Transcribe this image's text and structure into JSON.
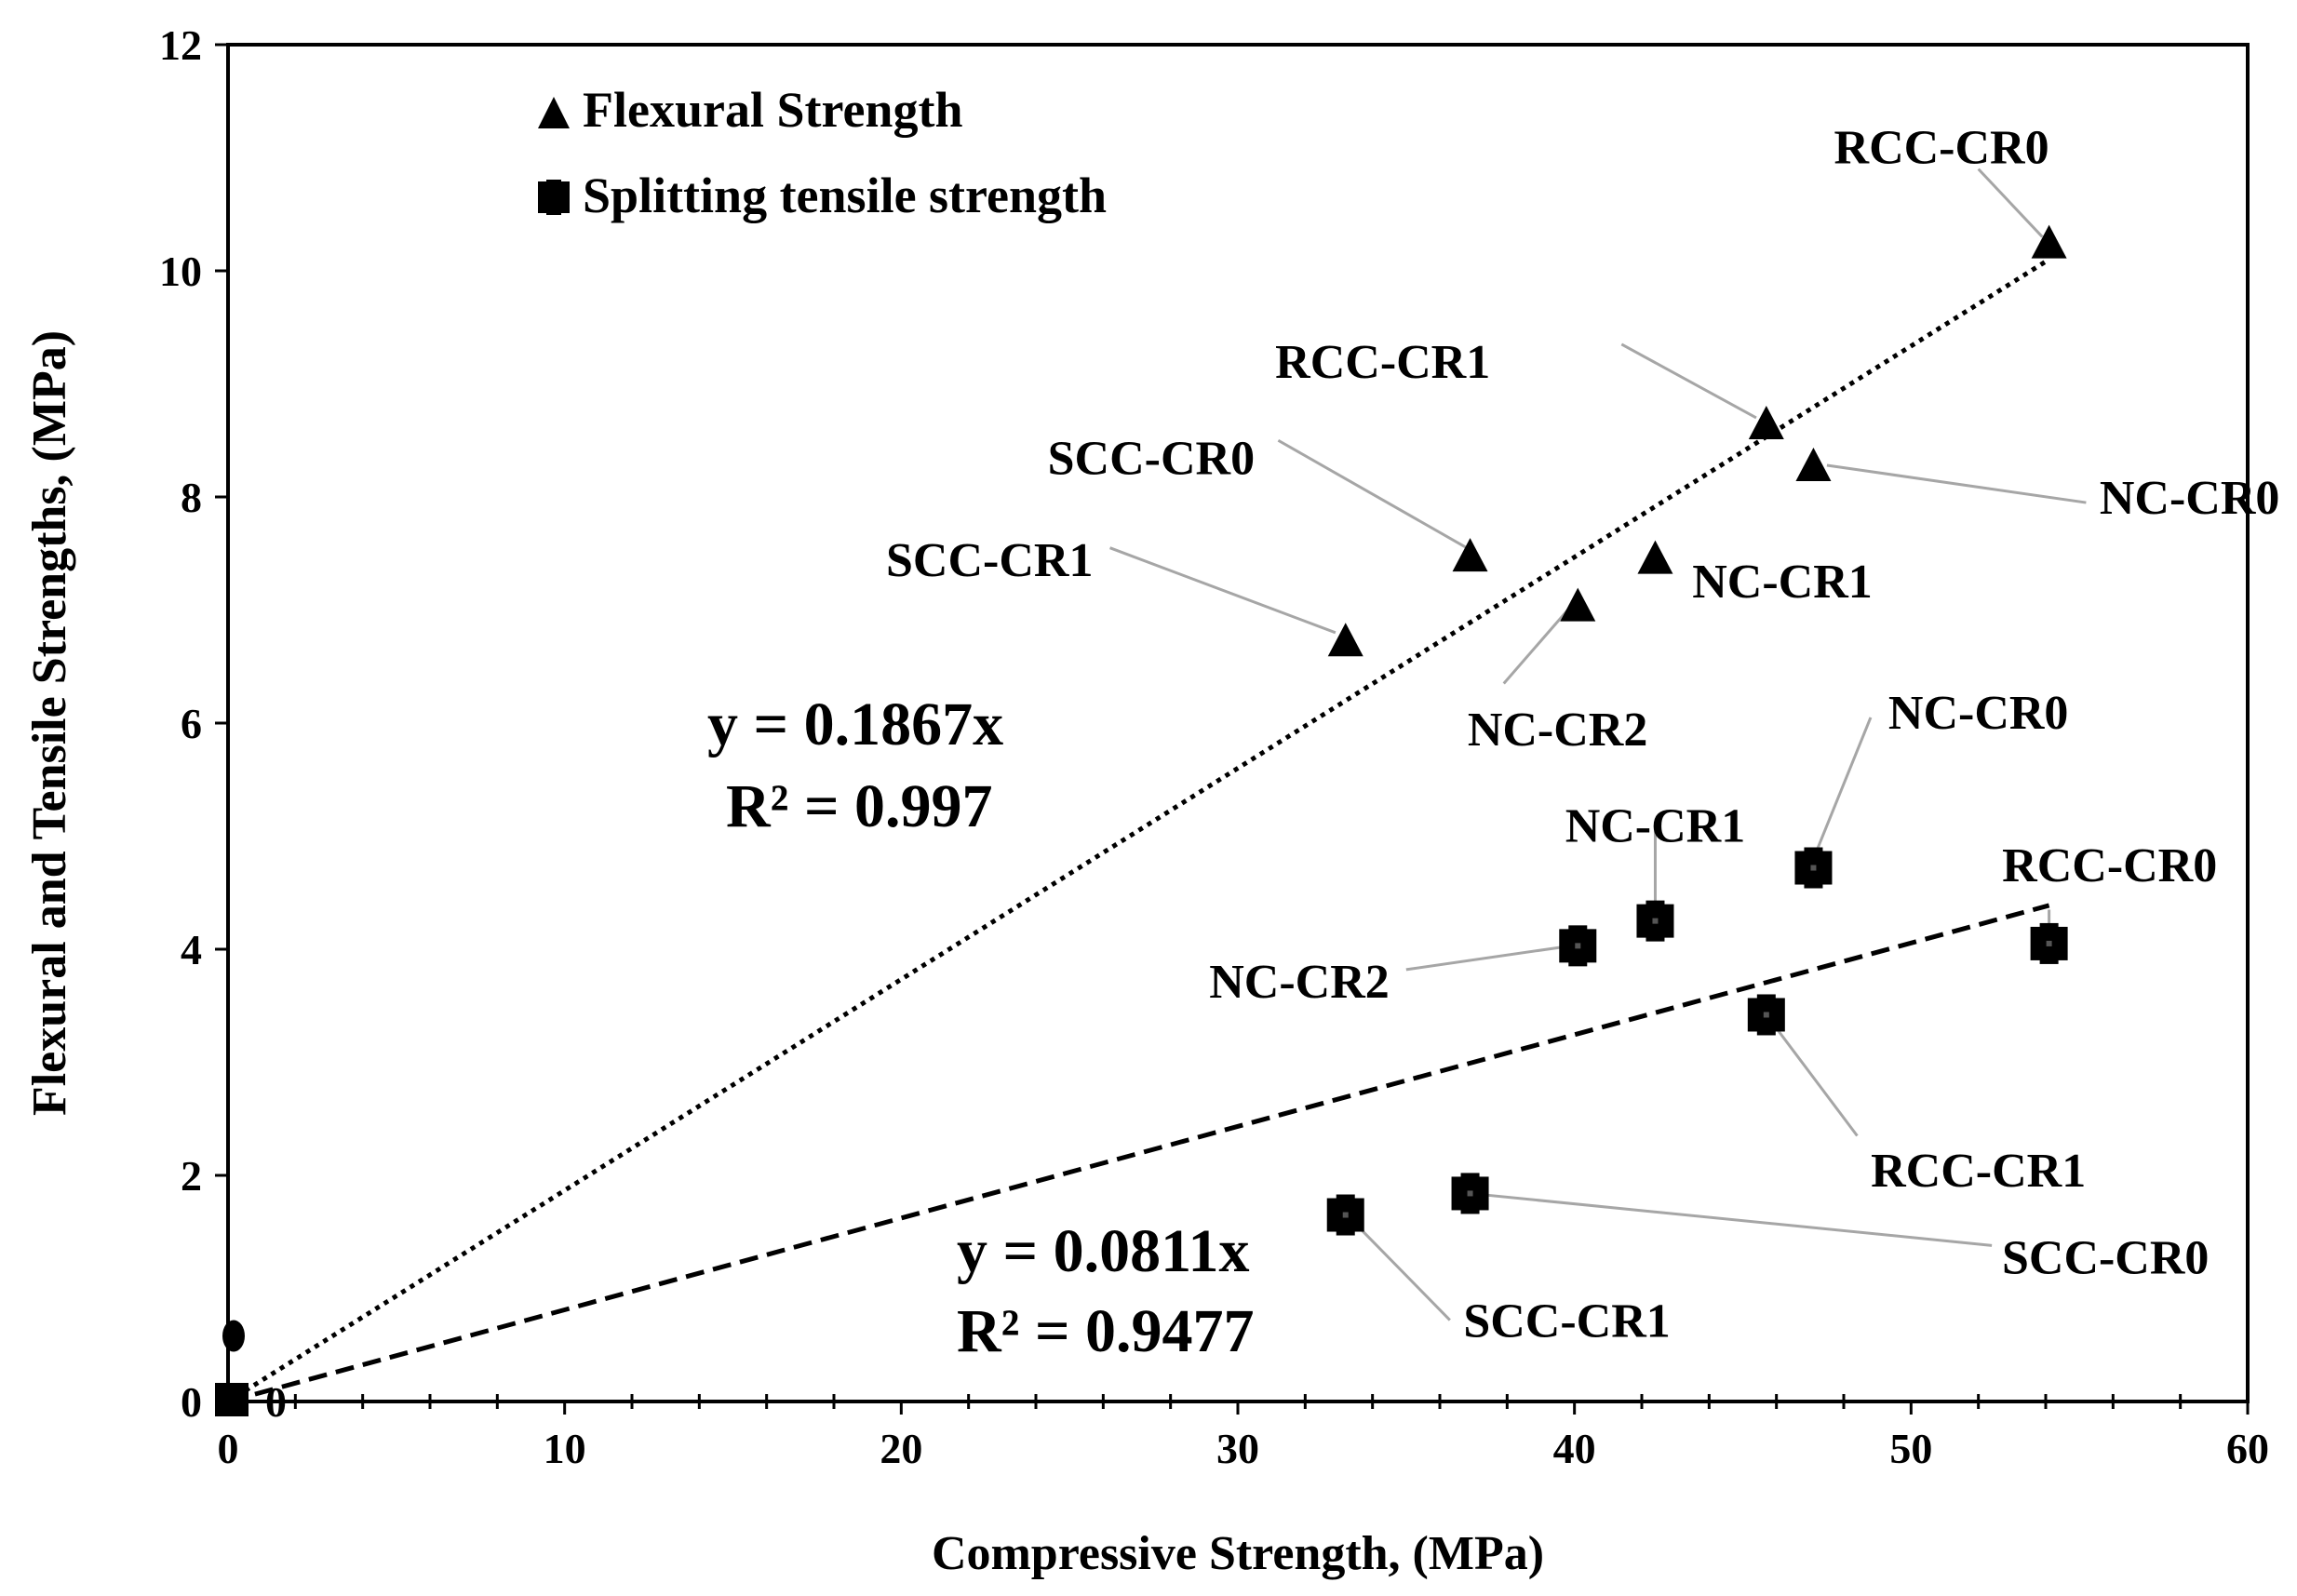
{
  "chart_data": {
    "type": "scatter",
    "xlabel": "Compressive Strength, (MPa)",
    "ylabel": "Flexural and Tensile Strengths, (MPa)",
    "xlim": [
      0,
      60
    ],
    "ylim": [
      0,
      12
    ],
    "x_ticks": [
      "0",
      "10",
      "20",
      "30",
      "40",
      "50",
      "60"
    ],
    "y_ticks": [
      "0",
      "2",
      "4",
      "6",
      "8",
      "10",
      "12"
    ],
    "x_tick_values": [
      0,
      10,
      20,
      30,
      40,
      50,
      60
    ],
    "y_tick_values": [
      0,
      2,
      4,
      6,
      8,
      10,
      12
    ],
    "grid": false,
    "legend": [
      "Flexural Strength",
      "Splitting tensile strength"
    ],
    "legend_position": "top-left",
    "series": [
      {
        "name": "Flexural Strength",
        "marker": "triangle",
        "points": [
          {
            "x": 54.1,
            "y": 10.25,
            "label": "RCC-CR0"
          },
          {
            "x": 45.7,
            "y": 8.65,
            "label": "RCC-CR1"
          },
          {
            "x": 47.1,
            "y": 8.28,
            "label": "NC-CR0"
          },
          {
            "x": 36.9,
            "y": 7.48,
            "label": "SCC-CR0"
          },
          {
            "x": 42.4,
            "y": 7.46,
            "label": "NC-CR1"
          },
          {
            "x": 40.1,
            "y": 7.04,
            "label": "NC-CR2"
          },
          {
            "x": 33.2,
            "y": 6.73,
            "label": "SCC-CR1"
          }
        ],
        "trendline": {
          "slope": 0.1867,
          "x_end": 54.1,
          "style": "dotted",
          "equation": "y = 0.1867x",
          "r2": "R² = 0.997"
        }
      },
      {
        "name": "Splitting tensile strength",
        "marker": "square",
        "points": [
          {
            "x": 47.1,
            "y": 4.72,
            "label": "NC-CR0"
          },
          {
            "x": 42.4,
            "y": 4.25,
            "label": "NC-CR1"
          },
          {
            "x": 40.1,
            "y": 4.03,
            "label": "NC-CR2"
          },
          {
            "x": 54.1,
            "y": 4.05,
            "label": "RCC-CR0"
          },
          {
            "x": 45.7,
            "y": 3.42,
            "label": "RCC-CR1"
          },
          {
            "x": 36.9,
            "y": 1.84,
            "label": "SCC-CR0"
          },
          {
            "x": 33.2,
            "y": 1.65,
            "label": "SCC-CR1"
          }
        ],
        "trendline": {
          "slope": 0.0811,
          "x_end": 54.1,
          "style": "dashed",
          "equation": "y = 0.0811x",
          "r2": "R² = 0.9477"
        }
      }
    ],
    "origin_markers": {
      "oval_y": 0.58,
      "label": "0"
    }
  }
}
